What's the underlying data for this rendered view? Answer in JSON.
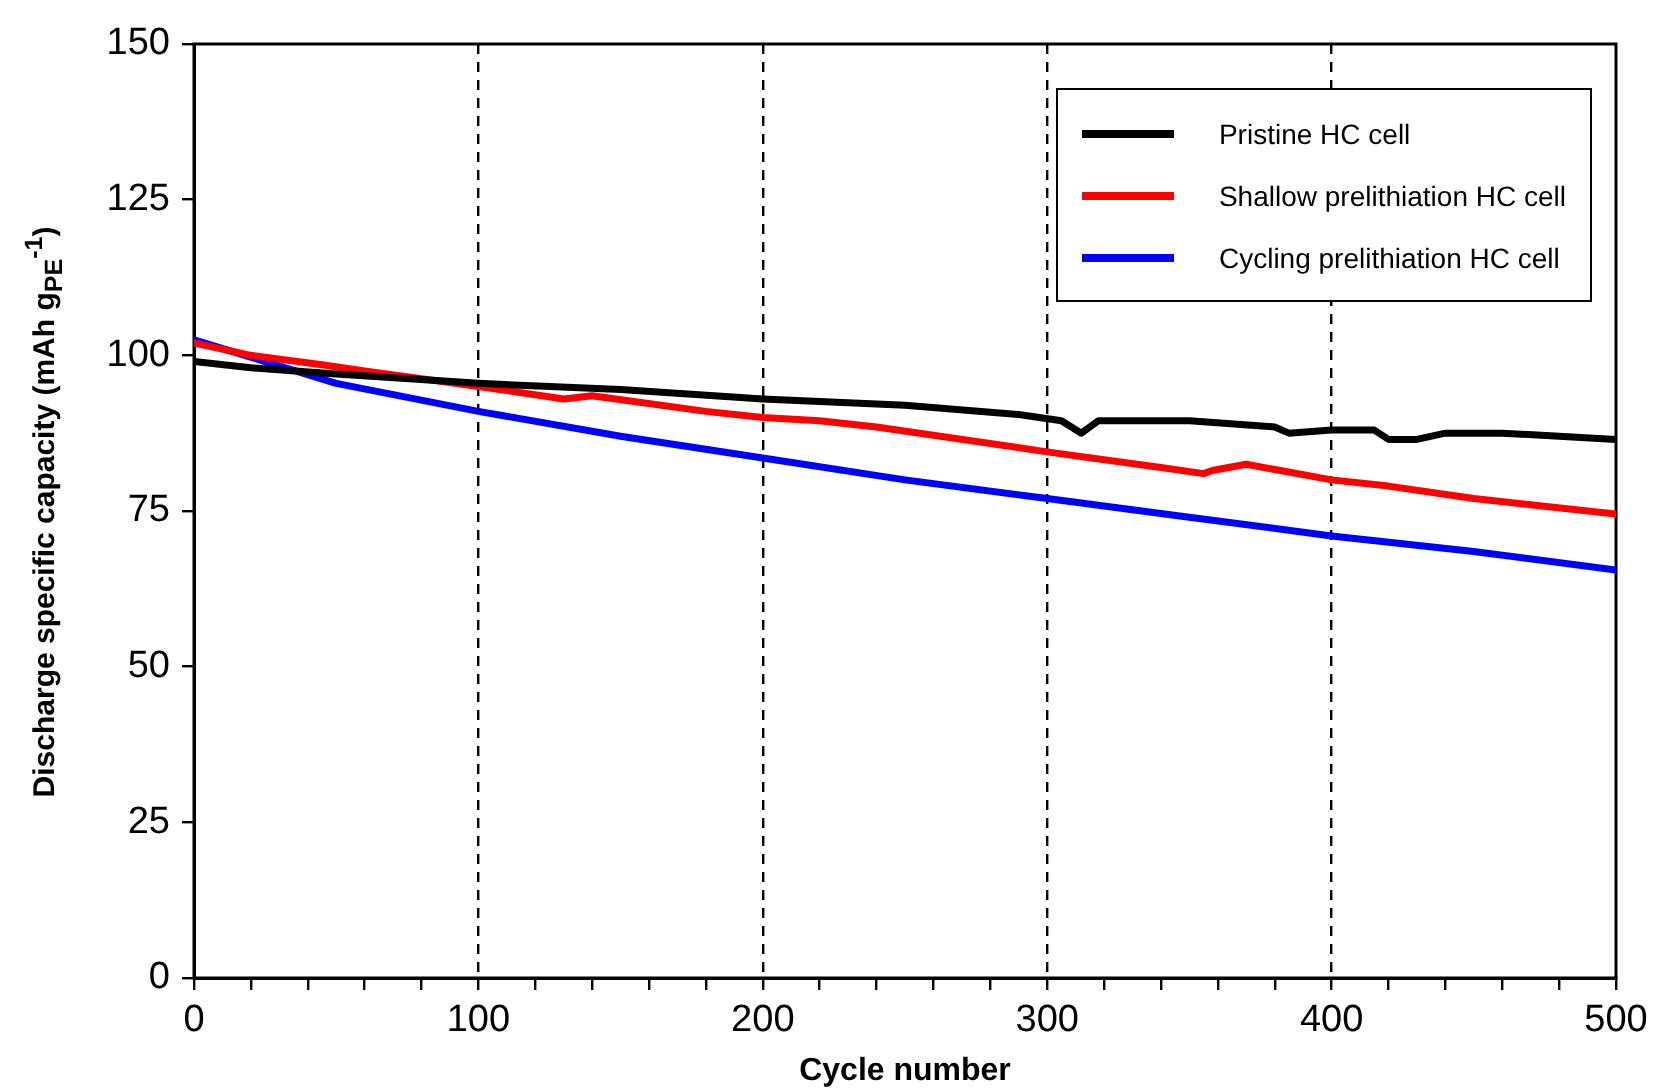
{
  "chart_data": {
    "type": "line",
    "xlabel": "Cycle number",
    "ylabel": "Discharge specific capacity (mAh g$_{PE}$$^{-1}$)",
    "xlim": [
      0,
      500
    ],
    "ylim": [
      0,
      150
    ],
    "xticks": [
      0,
      {
        "value": 20,
        "label": null
      },
      {
        "value": 40,
        "label": null
      },
      {
        "value": 60,
        "label": null
      },
      {
        "value": 80,
        "label": null
      },
      100,
      {
        "value": 120,
        "label": null
      },
      {
        "value": 140,
        "label": null
      },
      {
        "value": 160,
        "label": null
      },
      {
        "value": 180,
        "label": null
      },
      200,
      {
        "value": 220,
        "label": null
      },
      {
        "value": 240,
        "label": null
      },
      {
        "value": 260,
        "label": null
      },
      {
        "value": 280,
        "label": null
      },
      300,
      {
        "value": 320,
        "label": null
      },
      {
        "value": 340,
        "label": null
      },
      {
        "value": 360,
        "label": null
      },
      {
        "value": 380,
        "label": null
      },
      400,
      {
        "value": 420,
        "label": null
      },
      {
        "value": 440,
        "label": null
      },
      {
        "value": 460,
        "label": null
      },
      {
        "value": 480,
        "label": null
      },
      500
    ],
    "yticks": [
      0,
      25,
      50,
      75,
      100,
      125,
      150
    ],
    "grid": "x",
    "legend": "top right",
    "marker": "none",
    "line_style": "solid",
    "series": [
      {
        "name": "Pristine HC cell",
        "color": "#000000",
        "x": [
          0,
          20,
          50,
          100,
          150,
          200,
          250,
          290,
          305,
          312,
          318,
          350,
          380,
          385,
          400,
          415,
          420,
          430,
          440,
          460,
          480,
          500
        ],
        "values": [
          99,
          98,
          97,
          95.5,
          94.5,
          93,
          92,
          90.5,
          89.5,
          87.5,
          89.5,
          89.5,
          88.5,
          87.5,
          88,
          88,
          86.5,
          86.5,
          87.5,
          87.5,
          87,
          86.5
        ]
      },
      {
        "name": "Shallow prelithiation HC cell",
        "color": "#ff0000",
        "x": [
          0,
          20,
          45,
          60,
          100,
          130,
          140,
          180,
          200,
          220,
          240,
          300,
          340,
          355,
          358,
          370,
          400,
          420,
          450,
          470,
          500
        ],
        "values": [
          102,
          100,
          98.5,
          97.5,
          95,
          93,
          93.5,
          91,
          90,
          89.5,
          88.5,
          84.5,
          82,
          81,
          81.5,
          82.5,
          80,
          79,
          77,
          76,
          74.5
        ]
      },
      {
        "name": "Cycling prelithiation HC cell",
        "color": "#0000ff",
        "x": [
          0,
          25,
          50,
          100,
          150,
          200,
          250,
          300,
          350,
          400,
          450,
          500
        ],
        "values": [
          102.5,
          99,
          95.5,
          91,
          87,
          83.5,
          80,
          77,
          74,
          71,
          68.5,
          65.5
        ]
      }
    ]
  }
}
